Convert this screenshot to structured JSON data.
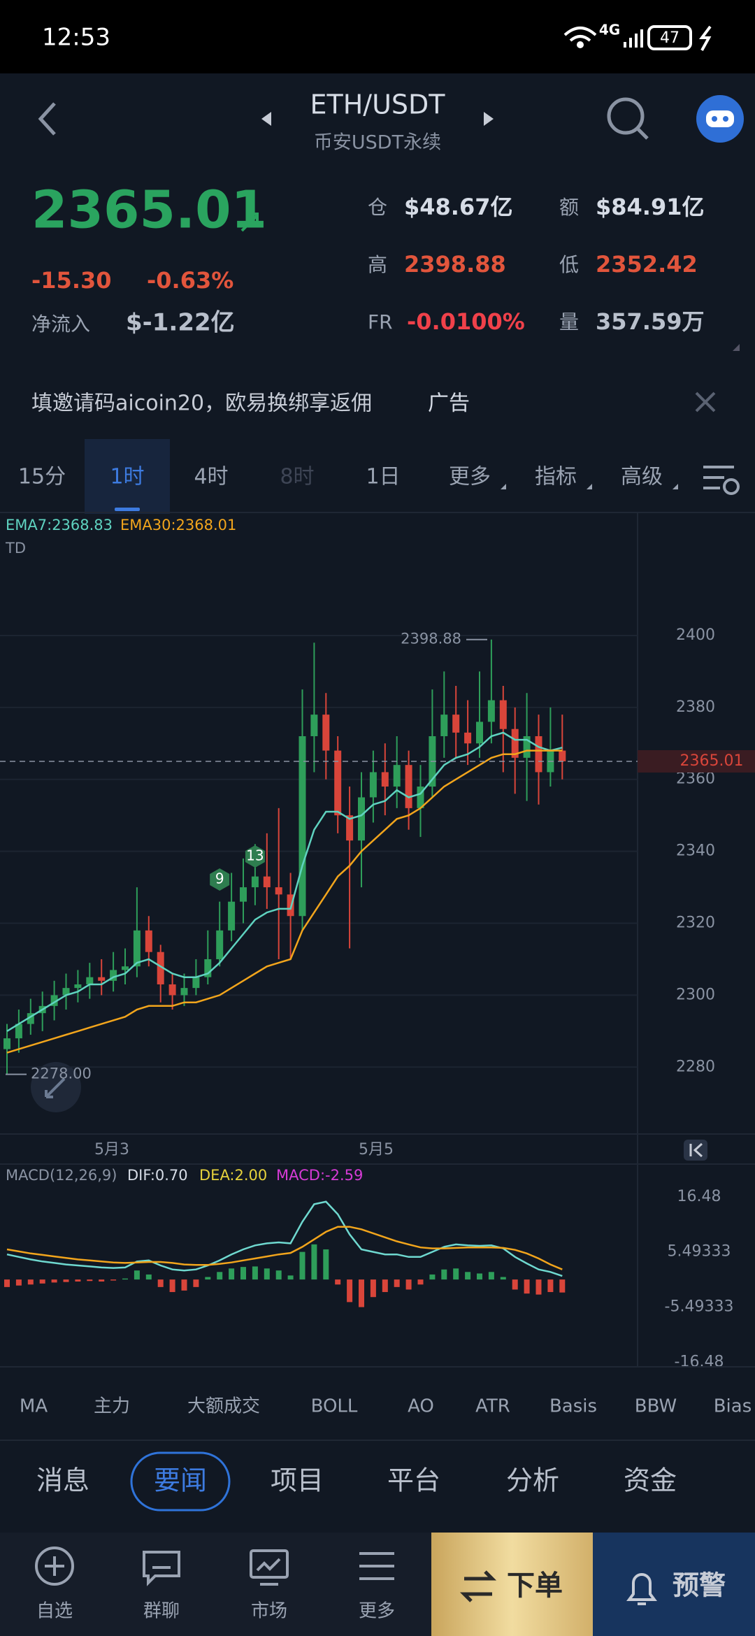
{
  "status": {
    "time": "12:53",
    "network": "4G",
    "battery": "47"
  },
  "header": {
    "pair": "ETH/USDT",
    "market": "币安USDT永续"
  },
  "quote": {
    "price": "2365.01",
    "change": "-15.30",
    "change_pct": "-0.63%",
    "inflow_label": "净流入",
    "inflow": "$-1.22亿",
    "stats": [
      {
        "label": "仓",
        "value": "$48.67亿"
      },
      {
        "label": "额",
        "value": "$84.91亿"
      },
      {
        "label": "高",
        "value": "2398.88"
      },
      {
        "label": "低",
        "value": "2352.42"
      },
      {
        "label": "FR",
        "value": "-0.0100%"
      },
      {
        "label": "量",
        "value": "357.59万"
      }
    ]
  },
  "ad": {
    "text": "填邀请码aicoin20，欧易换绑享返佣",
    "tag": "广告"
  },
  "intervals": {
    "items": [
      "15分",
      "1时",
      "4时",
      "8时",
      "1日",
      "更多",
      "指标",
      "高级"
    ],
    "selected": 1,
    "disabled": [
      3
    ]
  },
  "chart_data": [
    {
      "type": "candlestick",
      "indicator": "TD",
      "up_color": "#2e9e5a",
      "down_color": "#d9453a",
      "candles": [
        [
          2285,
          2292,
          2278,
          2288
        ],
        [
          2288,
          2296,
          2284,
          2292
        ],
        [
          2292,
          2299,
          2289,
          2295
        ],
        [
          2295,
          2301,
          2290,
          2297
        ],
        [
          2297,
          2304,
          2293,
          2300
        ],
        [
          2300,
          2306,
          2296,
          2302
        ],
        [
          2302,
          2307,
          2298,
          2303
        ],
        [
          2303,
          2309,
          2299,
          2305
        ],
        [
          2305,
          2310,
          2300,
          2304
        ],
        [
          2304,
          2312,
          2301,
          2307
        ],
        [
          2307,
          2313,
          2303,
          2308
        ],
        [
          2308,
          2330,
          2305,
          2318
        ],
        [
          2318,
          2322,
          2308,
          2312
        ],
        [
          2312,
          2314,
          2298,
          2303
        ],
        [
          2303,
          2306,
          2296,
          2300
        ],
        [
          2300,
          2306,
          2297,
          2302
        ],
        [
          2302,
          2310,
          2300,
          2305
        ],
        [
          2305,
          2318,
          2303,
          2310
        ],
        [
          2310,
          2326,
          2308,
          2318
        ],
        [
          2318,
          2334,
          2315,
          2326
        ],
        [
          2326,
          2338,
          2320,
          2330
        ],
        [
          2330,
          2342,
          2325,
          2333
        ],
        [
          2333,
          2345,
          2324,
          2330
        ],
        [
          2330,
          2352,
          2310,
          2328
        ],
        [
          2328,
          2334,
          2310,
          2322
        ],
        [
          2322,
          2385,
          2318,
          2372
        ],
        [
          2372,
          2398,
          2362,
          2378
        ],
        [
          2378,
          2384,
          2360,
          2368
        ],
        [
          2368,
          2372,
          2345,
          2350
        ],
        [
          2350,
          2358,
          2313,
          2343
        ],
        [
          2343,
          2362,
          2330,
          2355
        ],
        [
          2355,
          2368,
          2348,
          2362
        ],
        [
          2362,
          2370,
          2350,
          2358
        ],
        [
          2358,
          2372,
          2352,
          2364
        ],
        [
          2364,
          2368,
          2346,
          2352
        ],
        [
          2352,
          2364,
          2344,
          2358
        ],
        [
          2358,
          2385,
          2355,
          2372
        ],
        [
          2372,
          2390,
          2366,
          2378
        ],
        [
          2378,
          2386,
          2366,
          2373
        ],
        [
          2373,
          2382,
          2364,
          2370
        ],
        [
          2370,
          2390,
          2366,
          2376
        ],
        [
          2376,
          2398.88,
          2370,
          2382
        ],
        [
          2382,
          2386,
          2362,
          2374
        ],
        [
          2374,
          2380,
          2356,
          2366
        ],
        [
          2366,
          2384,
          2354,
          2372
        ],
        [
          2372,
          2378,
          2353,
          2362
        ],
        [
          2362,
          2380,
          2358,
          2368
        ],
        [
          2368,
          2378,
          2360,
          2365.01
        ]
      ],
      "series": [
        {
          "name": "EMA7:2368.83",
          "color": "#5fd3c0",
          "values": [
            2290,
            2292,
            2294,
            2296,
            2298,
            2300,
            2301,
            2303,
            2303,
            2305,
            2306,
            2309,
            2310,
            2308,
            2306,
            2305,
            2305,
            2306,
            2309,
            2313,
            2317,
            2321,
            2323,
            2324,
            2324,
            2336,
            2346,
            2351,
            2351,
            2349,
            2350,
            2353,
            2354,
            2357,
            2355,
            2356,
            2360,
            2364,
            2366,
            2367,
            2369,
            2372,
            2373,
            2371,
            2371,
            2369,
            2368,
            2368.83
          ]
        },
        {
          "name": "EMA30:2368.01",
          "color": "#f2a51c",
          "values": [
            2284,
            2285,
            2286,
            2287,
            2288,
            2289,
            2290,
            2291,
            2292,
            2293,
            2294,
            2296,
            2297,
            2297,
            2297,
            2298,
            2298,
            2299,
            2300,
            2302,
            2304,
            2306,
            2308,
            2309,
            2310,
            2318,
            2323,
            2328,
            2333,
            2336,
            2340,
            2343,
            2346,
            2349,
            2350,
            2352,
            2355,
            2358,
            2360,
            2362,
            2364,
            2366,
            2367,
            2367,
            2368,
            2368,
            2368,
            2368.01
          ]
        }
      ],
      "ylim": [
        2261.4,
        2434.2
      ],
      "yticks": [
        2280,
        2300,
        2320,
        2340,
        2360,
        2380,
        2400
      ],
      "last": 2365.01,
      "high_marker": {
        "value": 2398.88,
        "label": "2398.88"
      },
      "low_marker": {
        "value": 2278,
        "label": "2278.00"
      },
      "x_labels": [
        "5月3",
        "5月5"
      ],
      "td_labels": [
        9,
        13
      ]
    },
    {
      "type": "macd",
      "label": "MACD(12,26,9)",
      "series": [
        {
          "name": "DIF:0.70",
          "color": "#6fd9d0",
          "values": [
            5,
            4.5,
            4,
            3.6,
            3.3,
            3,
            2.8,
            2.6,
            2.4,
            2.3,
            2.4,
            3.6,
            3.8,
            2.8,
            2,
            1.8,
            2,
            2.8,
            3.8,
            5,
            6,
            6.8,
            7.2,
            7.4,
            7.2,
            11.5,
            15,
            15.5,
            13,
            9,
            6,
            5.5,
            5,
            5,
            4.5,
            4.5,
            5.5,
            6.5,
            7,
            6.8,
            6.7,
            6.8,
            6.2,
            4.5,
            3.2,
            2,
            1.5,
            0.7
          ]
        },
        {
          "name": "DEA:2.00",
          "color": "#f2a51c",
          "values": [
            6,
            5.6,
            5.2,
            4.9,
            4.6,
            4.3,
            4,
            3.8,
            3.6,
            3.4,
            3.3,
            3.4,
            3.5,
            3.5,
            3.3,
            3,
            2.9,
            2.9,
            3.1,
            3.4,
            3.8,
            4.2,
            4.6,
            5,
            5.3,
            6.5,
            8,
            9.5,
            10.5,
            10.5,
            10,
            9.2,
            8.4,
            7.6,
            7,
            6.4,
            6.2,
            6.2,
            6.3,
            6.4,
            6.4,
            6.4,
            6.3,
            5.9,
            5.2,
            4.2,
            3,
            2
          ]
        },
        {
          "name": "MACD:-2.59",
          "type": "bar",
          "values": [
            -1.5,
            -1.2,
            -1,
            -0.8,
            -0.6,
            -0.5,
            -0.4,
            -0.3,
            -0.4,
            -0.2,
            0.2,
            1.8,
            1,
            -1.5,
            -2.5,
            -2.2,
            -1.5,
            0.5,
            1.5,
            2.2,
            2.5,
            2.6,
            2.2,
            1.8,
            0.8,
            5.5,
            7,
            6,
            -1,
            -4.5,
            -5.5,
            -3.5,
            -2.5,
            -1.5,
            -2,
            -1,
            1,
            2,
            2.2,
            1.5,
            1.2,
            1.5,
            0.5,
            -2,
            -2.8,
            -3,
            -2.5,
            -2.59
          ]
        }
      ],
      "ylim": [
        -17.4,
        23
      ],
      "yticks": [
        -16.48,
        -5.49333,
        5.49333,
        16.48
      ]
    }
  ],
  "indicators": {
    "items": [
      "MA",
      "主力",
      "大额成交",
      "BOLL",
      "AO",
      "ATR",
      "Basis",
      "BBW",
      "Bias"
    ]
  },
  "news_tabs": {
    "items": [
      "消息",
      "要闻",
      "项目",
      "平台",
      "分析",
      "资金"
    ],
    "selected": 1
  },
  "nav": {
    "items": [
      "自选",
      "群聊",
      "市场",
      "更多"
    ],
    "order": "下单",
    "alert": "预警"
  }
}
